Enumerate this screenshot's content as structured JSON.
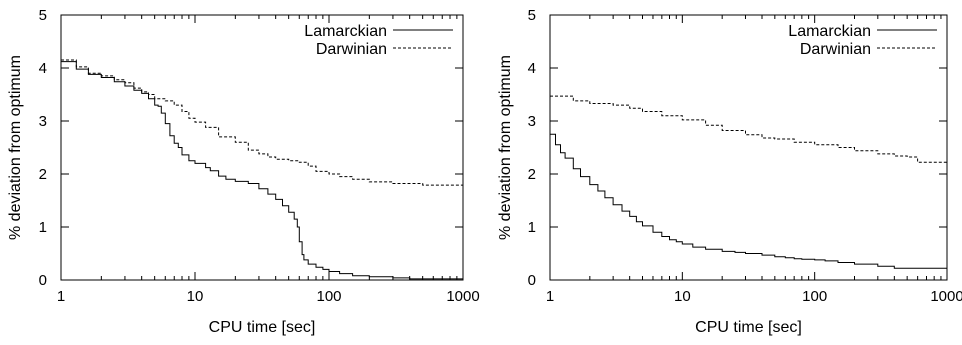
{
  "chart_data": [
    {
      "type": "line",
      "xlabel": "CPU time [sec]",
      "ylabel": "% deviation from optimum",
      "xscale": "log",
      "xlim": [
        1,
        1000
      ],
      "ylim": [
        0,
        5
      ],
      "x_ticks": [
        1,
        10,
        100,
        1000
      ],
      "x_tick_labels": [
        "1",
        "10",
        "100",
        "1000"
      ],
      "y_ticks": [
        0,
        1,
        2,
        3,
        4,
        5
      ],
      "y_tick_labels": [
        "0",
        "1",
        "2",
        "3",
        "4",
        "5"
      ],
      "grid": false,
      "legend_position": "top-right",
      "series": [
        {
          "name": "Lamarckian",
          "style": "solid",
          "x": [
            1,
            1.3,
            1.6,
            2,
            2.5,
            3,
            3.5,
            4,
            4.5,
            5,
            5.3,
            5.6,
            6,
            6.5,
            7,
            7.5,
            8,
            9,
            10,
            12,
            13,
            15,
            17,
            20,
            25,
            30,
            35,
            40,
            45,
            50,
            55,
            58,
            60,
            63,
            65,
            70,
            80,
            90,
            100,
            120,
            150,
            200,
            300,
            400,
            1000
          ],
          "y": [
            4.12,
            3.98,
            3.88,
            3.82,
            3.74,
            3.66,
            3.58,
            3.52,
            3.42,
            3.3,
            3.28,
            3.15,
            2.95,
            2.72,
            2.58,
            2.5,
            2.36,
            2.25,
            2.2,
            2.12,
            2.06,
            1.96,
            1.9,
            1.86,
            1.82,
            1.72,
            1.62,
            1.52,
            1.4,
            1.28,
            1.15,
            1.0,
            0.72,
            0.48,
            0.38,
            0.3,
            0.24,
            0.2,
            0.16,
            0.12,
            0.08,
            0.06,
            0.04,
            0.02,
            0.01
          ]
        },
        {
          "name": "Darwinian",
          "style": "dashed",
          "x": [
            1,
            1.3,
            1.6,
            2,
            2.5,
            3,
            3.5,
            4,
            4.5,
            5,
            6,
            7,
            8,
            9,
            10,
            12,
            15,
            20,
            25,
            30,
            35,
            40,
            50,
            60,
            70,
            80,
            100,
            120,
            150,
            200,
            300,
            500,
            1000
          ],
          "y": [
            4.15,
            4.02,
            3.9,
            3.85,
            3.78,
            3.72,
            3.62,
            3.55,
            3.5,
            3.42,
            3.38,
            3.3,
            3.18,
            3.05,
            2.98,
            2.88,
            2.7,
            2.6,
            2.45,
            2.38,
            2.32,
            2.28,
            2.25,
            2.22,
            2.15,
            2.05,
            2.0,
            1.95,
            1.9,
            1.85,
            1.82,
            1.79,
            1.78
          ]
        }
      ]
    },
    {
      "type": "line",
      "xlabel": "CPU time [sec]",
      "ylabel": "% deviation from optimum",
      "xscale": "log",
      "xlim": [
        1,
        1000
      ],
      "ylim": [
        0,
        5
      ],
      "x_ticks": [
        1,
        10,
        100,
        1000
      ],
      "x_tick_labels": [
        "1",
        "10",
        "100",
        "1000"
      ],
      "y_ticks": [
        0,
        1,
        2,
        3,
        4,
        5
      ],
      "y_tick_labels": [
        "0",
        "1",
        "2",
        "3",
        "4",
        "5"
      ],
      "grid": false,
      "legend_position": "top-right",
      "series": [
        {
          "name": "Lamarckian",
          "style": "solid",
          "x": [
            1,
            1.1,
            1.2,
            1.3,
            1.5,
            1.7,
            2,
            2.3,
            2.6,
            3,
            3.5,
            4,
            4.5,
            5,
            6,
            7,
            8,
            9,
            10,
            12,
            15,
            20,
            25,
            30,
            40,
            50,
            60,
            70,
            80,
            100,
            120,
            150,
            200,
            300,
            400,
            1000
          ],
          "y": [
            2.75,
            2.55,
            2.4,
            2.3,
            2.1,
            1.95,
            1.8,
            1.68,
            1.55,
            1.42,
            1.3,
            1.2,
            1.1,
            1.02,
            0.9,
            0.82,
            0.76,
            0.72,
            0.68,
            0.62,
            0.58,
            0.54,
            0.52,
            0.5,
            0.47,
            0.44,
            0.42,
            0.4,
            0.39,
            0.38,
            0.36,
            0.33,
            0.3,
            0.26,
            0.22,
            0.21
          ]
        },
        {
          "name": "Darwinian",
          "style": "dashed",
          "x": [
            1,
            1.5,
            2,
            3,
            4,
            5,
            7,
            10,
            15,
            20,
            30,
            40,
            50,
            70,
            100,
            150,
            200,
            300,
            400,
            500,
            600,
            1000
          ],
          "y": [
            3.47,
            3.38,
            3.33,
            3.3,
            3.24,
            3.18,
            3.1,
            3.02,
            2.92,
            2.82,
            2.74,
            2.68,
            2.66,
            2.6,
            2.55,
            2.5,
            2.44,
            2.38,
            2.34,
            2.32,
            2.22,
            2.22
          ]
        }
      ]
    }
  ]
}
